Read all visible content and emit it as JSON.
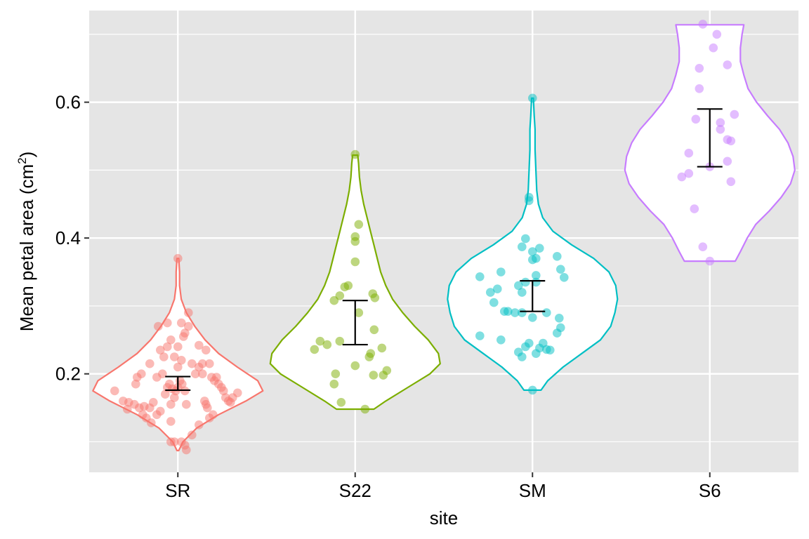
{
  "chart_data": {
    "type": "violin",
    "title": "",
    "xlabel": "site",
    "ylabel": {
      "text": "Mean petal area (cm",
      "superscript": "2",
      "suffix": ")"
    },
    "ylim": [
      0.055,
      0.735
    ],
    "y_ticks": [
      0.2,
      0.4,
      0.6
    ],
    "y_tick_labels": [
      "0.2",
      "0.4",
      "0.6"
    ],
    "y_minor_ticks": [
      0.1,
      0.3,
      0.5,
      0.7
    ],
    "grid": true,
    "legend": "none",
    "panel_background": "#E5E5E5",
    "grid_color": "#FFFFFF",
    "error_bar_color": "#000000",
    "categories": [
      "SR",
      "S22",
      "SM",
      "S6"
    ],
    "series": [
      {
        "site": "SR",
        "color": "#F8766D",
        "error_bar": {
          "low": 0.176,
          "high": 0.196
        },
        "density": [
          [
            0.087,
            0.01
          ],
          [
            0.1,
            0.06
          ],
          [
            0.12,
            0.22
          ],
          [
            0.14,
            0.48
          ],
          [
            0.16,
            0.8
          ],
          [
            0.175,
            1.0
          ],
          [
            0.19,
            0.94
          ],
          [
            0.21,
            0.7
          ],
          [
            0.23,
            0.48
          ],
          [
            0.25,
            0.32
          ],
          [
            0.27,
            0.2
          ],
          [
            0.29,
            0.1
          ],
          [
            0.31,
            0.04
          ],
          [
            0.33,
            0.02
          ],
          [
            0.35,
            0.02
          ],
          [
            0.37,
            0.01
          ]
        ],
        "points": [
          [
            -90,
            0.175
          ],
          [
            -78,
            0.16
          ],
          [
            -70,
            0.158
          ],
          [
            -62,
            0.155
          ],
          [
            -55,
            0.15
          ],
          [
            -48,
            0.152
          ],
          [
            -40,
            0.15
          ],
          [
            -35,
            0.158
          ],
          [
            -72,
            0.148
          ],
          [
            -60,
            0.185
          ],
          [
            -58,
            0.195
          ],
          [
            -50,
            0.14
          ],
          [
            -45,
            0.135
          ],
          [
            -38,
            0.128
          ],
          [
            -30,
            0.14
          ],
          [
            -25,
            0.145
          ],
          [
            -52,
            0.2
          ],
          [
            -40,
            0.215
          ],
          [
            -30,
            0.195
          ],
          [
            -22,
            0.2
          ],
          [
            -18,
            0.17
          ],
          [
            -15,
            0.18
          ],
          [
            -12,
            0.185
          ],
          [
            -8,
            0.178
          ],
          [
            -5,
            0.165
          ],
          [
            -3,
            0.175
          ],
          [
            0,
            0.18
          ],
          [
            3,
            0.19
          ],
          [
            6,
            0.185
          ],
          [
            10,
            0.175
          ],
          [
            12,
            0.155
          ],
          [
            -10,
            0.155
          ],
          [
            -20,
            0.225
          ],
          [
            -25,
            0.235
          ],
          [
            -15,
            0.24
          ],
          [
            -10,
            0.25
          ],
          [
            -5,
            0.225
          ],
          [
            0,
            0.21
          ],
          [
            5,
            0.22
          ],
          [
            0,
            0.24
          ],
          [
            -28,
            0.27
          ],
          [
            -15,
            0.275
          ],
          [
            5,
            0.275
          ],
          [
            10,
            0.26
          ],
          [
            8,
            0.255
          ],
          [
            15,
            0.27
          ],
          [
            15,
            0.29
          ],
          [
            20,
            0.215
          ],
          [
            25,
            0.2
          ],
          [
            30,
            0.21
          ],
          [
            35,
            0.215
          ],
          [
            40,
            0.235
          ],
          [
            45,
            0.215
          ],
          [
            48,
            0.195
          ],
          [
            52,
            0.19
          ],
          [
            55,
            0.195
          ],
          [
            58,
            0.185
          ],
          [
            62,
            0.18
          ],
          [
            65,
            0.175
          ],
          [
            68,
            0.165
          ],
          [
            72,
            0.16
          ],
          [
            75,
            0.158
          ],
          [
            78,
            0.165
          ],
          [
            85,
            0.172
          ],
          [
            38,
            0.16
          ],
          [
            40,
            0.155
          ],
          [
            42,
            0.15
          ],
          [
            45,
            0.135
          ],
          [
            50,
            0.14
          ],
          [
            30,
            0.125
          ],
          [
            20,
            0.11
          ],
          [
            -10,
            0.13
          ],
          [
            -10,
            0.1
          ],
          [
            -5,
            0.1
          ],
          [
            5,
            0.1
          ],
          [
            10,
            0.095
          ],
          [
            12,
            0.088
          ],
          [
            0,
            0.37
          ],
          [
            30,
            0.242
          ],
          [
            35,
            0.2
          ]
        ]
      },
      {
        "site": "S22",
        "color": "#7CAE00",
        "error_bar": {
          "low": 0.243,
          "high": 0.308
        },
        "density": [
          [
            0.148,
            0.22
          ],
          [
            0.16,
            0.36
          ],
          [
            0.18,
            0.62
          ],
          [
            0.2,
            0.88
          ],
          [
            0.215,
            1.0
          ],
          [
            0.23,
            0.98
          ],
          [
            0.25,
            0.86
          ],
          [
            0.27,
            0.7
          ],
          [
            0.29,
            0.56
          ],
          [
            0.31,
            0.44
          ],
          [
            0.33,
            0.36
          ],
          [
            0.35,
            0.3
          ],
          [
            0.37,
            0.26
          ],
          [
            0.39,
            0.22
          ],
          [
            0.41,
            0.18
          ],
          [
            0.43,
            0.14
          ],
          [
            0.45,
            0.1
          ],
          [
            0.47,
            0.07
          ],
          [
            0.49,
            0.05
          ],
          [
            0.51,
            0.04
          ],
          [
            0.522,
            0.03
          ]
        ],
        "points": [
          [
            -58,
            0.236
          ],
          [
            -50,
            0.248
          ],
          [
            -40,
            0.243
          ],
          [
            -22,
            0.248
          ],
          [
            -28,
            0.2
          ],
          [
            -30,
            0.185
          ],
          [
            -20,
            0.158
          ],
          [
            0,
            0.212
          ],
          [
            14,
            0.148
          ],
          [
            20,
            0.225
          ],
          [
            22,
            0.23
          ],
          [
            26,
            0.198
          ],
          [
            38,
            0.238
          ],
          [
            40,
            0.198
          ],
          [
            45,
            0.205
          ],
          [
            27,
            0.265
          ],
          [
            25,
            0.318
          ],
          [
            28,
            0.312
          ],
          [
            5,
            0.29
          ],
          [
            -10,
            0.33
          ],
          [
            -15,
            0.328
          ],
          [
            -22,
            0.315
          ],
          [
            -30,
            0.308
          ],
          [
            0,
            0.365
          ],
          [
            0,
            0.395
          ],
          [
            0,
            0.402
          ],
          [
            5,
            0.42
          ],
          [
            0,
            0.523
          ]
        ]
      },
      {
        "site": "SM",
        "color": "#00BFC4",
        "error_bar": {
          "low": 0.292,
          "high": 0.337
        },
        "density": [
          [
            0.176,
            0.1
          ],
          [
            0.19,
            0.18
          ],
          [
            0.21,
            0.36
          ],
          [
            0.23,
            0.58
          ],
          [
            0.25,
            0.8
          ],
          [
            0.27,
            0.92
          ],
          [
            0.29,
            0.97
          ],
          [
            0.31,
            1.0
          ],
          [
            0.33,
            0.98
          ],
          [
            0.35,
            0.9
          ],
          [
            0.37,
            0.72
          ],
          [
            0.39,
            0.46
          ],
          [
            0.41,
            0.24
          ],
          [
            0.43,
            0.12
          ],
          [
            0.45,
            0.07
          ],
          [
            0.47,
            0.05
          ],
          [
            0.5,
            0.04
          ],
          [
            0.53,
            0.03
          ],
          [
            0.56,
            0.03
          ],
          [
            0.58,
            0.02
          ],
          [
            0.606,
            0.01
          ]
        ],
        "points": [
          [
            -75,
            0.343
          ],
          [
            -60,
            0.32
          ],
          [
            -50,
            0.325
          ],
          [
            -45,
            0.35
          ],
          [
            -55,
            0.305
          ],
          [
            -40,
            0.292
          ],
          [
            -35,
            0.292
          ],
          [
            -25,
            0.29
          ],
          [
            -20,
            0.33
          ],
          [
            -15,
            0.32
          ],
          [
            -10,
            0.335
          ],
          [
            -15,
            0.29
          ],
          [
            -75,
            0.256
          ],
          [
            -45,
            0.25
          ],
          [
            -20,
            0.232
          ],
          [
            -15,
            0.225
          ],
          [
            -10,
            0.24
          ],
          [
            -5,
            0.245
          ],
          [
            0,
            0.283
          ],
          [
            5,
            0.23
          ],
          [
            10,
            0.238
          ],
          [
            15,
            0.245
          ],
          [
            20,
            0.236
          ],
          [
            25,
            0.235
          ],
          [
            35,
            0.26
          ],
          [
            40,
            0.268
          ],
          [
            38,
            0.282
          ],
          [
            45,
            0.342
          ],
          [
            40,
            0.354
          ],
          [
            35,
            0.373
          ],
          [
            5,
            0.345
          ],
          [
            0,
            0.368
          ],
          [
            5,
            0.37
          ],
          [
            0,
            0.38
          ],
          [
            -15,
            0.387
          ],
          [
            -10,
            0.399
          ],
          [
            10,
            0.385
          ],
          [
            20,
            0.29
          ],
          [
            5,
            0.335
          ],
          [
            -5,
            0.455
          ],
          [
            -5,
            0.46
          ],
          [
            0,
            0.176
          ],
          [
            0,
            0.606
          ]
        ]
      },
      {
        "site": "S6",
        "color": "#C77CFF",
        "error_bar": {
          "low": 0.505,
          "high": 0.59
        },
        "density": [
          [
            0.366,
            0.3
          ],
          [
            0.38,
            0.36
          ],
          [
            0.4,
            0.44
          ],
          [
            0.42,
            0.54
          ],
          [
            0.44,
            0.7
          ],
          [
            0.46,
            0.84
          ],
          [
            0.48,
            0.95
          ],
          [
            0.5,
            1.0
          ],
          [
            0.52,
            0.98
          ],
          [
            0.54,
            0.92
          ],
          [
            0.56,
            0.82
          ],
          [
            0.58,
            0.68
          ],
          [
            0.6,
            0.55
          ],
          [
            0.62,
            0.45
          ],
          [
            0.64,
            0.4
          ],
          [
            0.66,
            0.36
          ],
          [
            0.68,
            0.36
          ],
          [
            0.7,
            0.38
          ],
          [
            0.714,
            0.4
          ]
        ],
        "points": [
          [
            -40,
            0.49
          ],
          [
            -30,
            0.495
          ],
          [
            -30,
            0.525
          ],
          [
            -22,
            0.443
          ],
          [
            -20,
            0.575
          ],
          [
            -15,
            0.62
          ],
          [
            -15,
            0.65
          ],
          [
            -10,
            0.715
          ],
          [
            -10,
            0.387
          ],
          [
            0,
            0.366
          ],
          [
            0,
            0.505
          ],
          [
            10,
            0.7
          ],
          [
            5,
            0.68
          ],
          [
            15,
            0.57
          ],
          [
            15,
            0.56
          ],
          [
            25,
            0.545
          ],
          [
            25,
            0.513
          ],
          [
            30,
            0.543
          ],
          [
            30,
            0.483
          ],
          [
            35,
            0.582
          ],
          [
            25,
            0.655
          ]
        ]
      }
    ]
  }
}
